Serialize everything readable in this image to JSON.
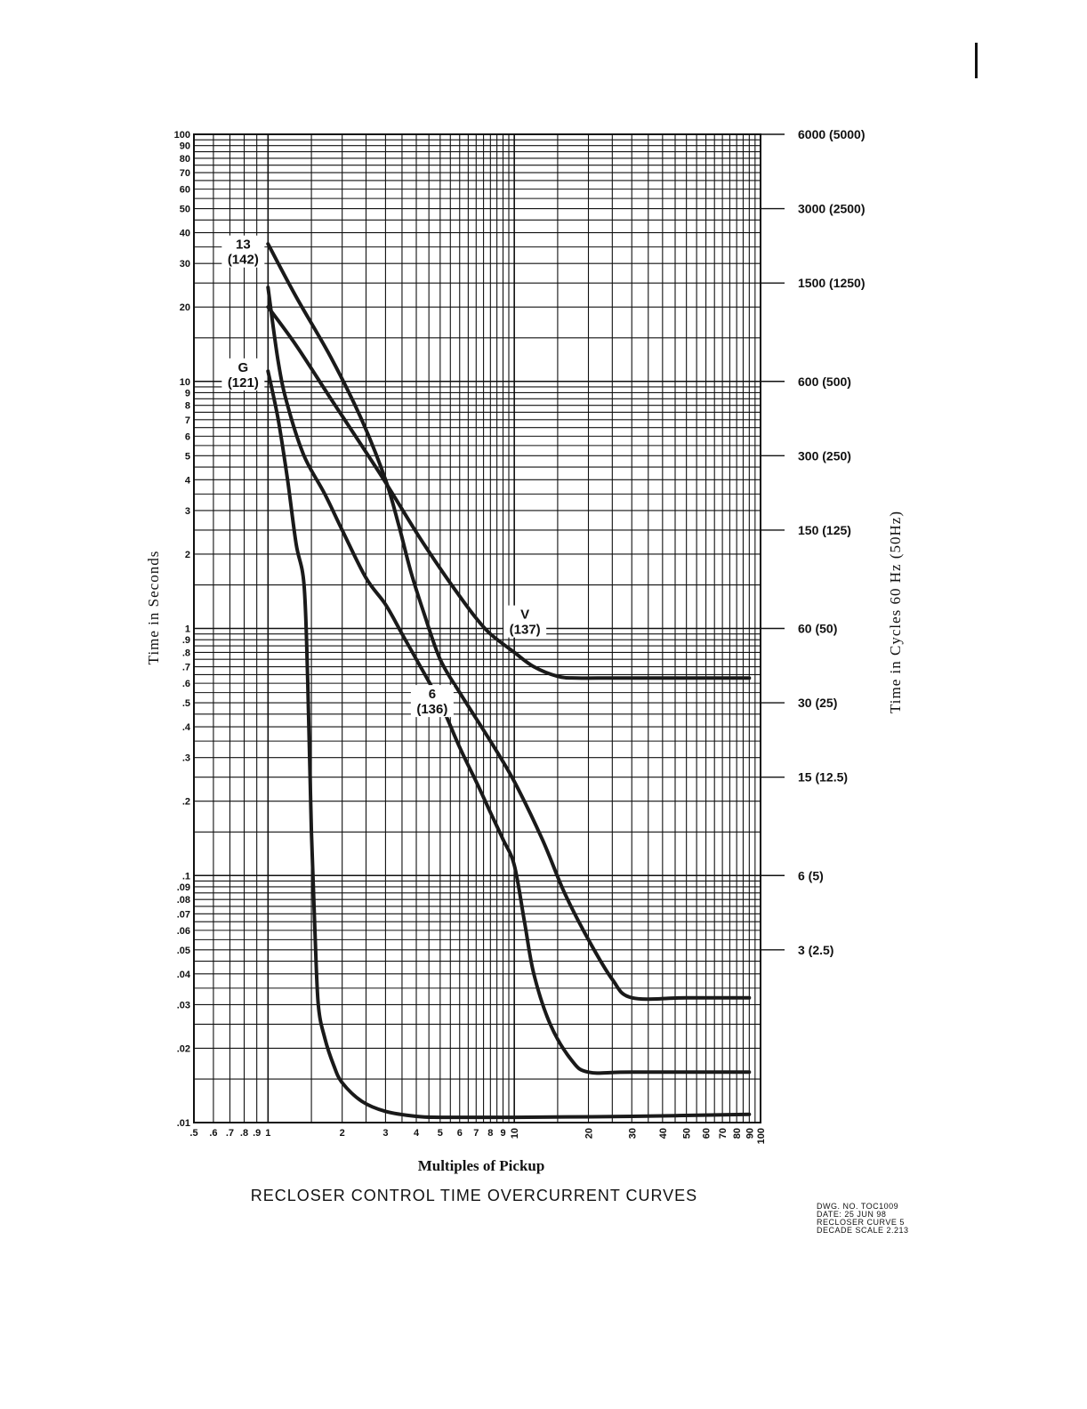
{
  "chart_data": {
    "type": "line",
    "title": "RECLOSER CONTROL TIME OVERCURRENT CURVES",
    "xlabel": "Multiples of Pickup",
    "ylabel": "Time in Seconds",
    "y2label": "Time in Cycles 60 Hz (50Hz)",
    "x_scale": "log",
    "y_scale": "log",
    "xlim": [
      0.5,
      100
    ],
    "ylim": [
      0.01,
      100
    ],
    "grid": true,
    "x_ticks": [
      {
        "v": 0.5,
        "t": ".5"
      },
      {
        "v": 0.6,
        "t": ".6"
      },
      {
        "v": 0.7,
        "t": ".7"
      },
      {
        "v": 0.8,
        "t": ".8"
      },
      {
        "v": 0.9,
        "t": ".9"
      },
      {
        "v": 1,
        "t": "1"
      },
      {
        "v": 2,
        "t": "2"
      },
      {
        "v": 3,
        "t": "3"
      },
      {
        "v": 4,
        "t": "4"
      },
      {
        "v": 5,
        "t": "5"
      },
      {
        "v": 6,
        "t": "6"
      },
      {
        "v": 7,
        "t": "7"
      },
      {
        "v": 8,
        "t": "8"
      },
      {
        "v": 9,
        "t": "9"
      },
      {
        "v": 10,
        "t": "10",
        "rot": true
      },
      {
        "v": 20,
        "t": "20",
        "rot": true
      },
      {
        "v": 30,
        "t": "30",
        "rot": true
      },
      {
        "v": 40,
        "t": "40",
        "rot": true
      },
      {
        "v": 50,
        "t": "50",
        "rot": true
      },
      {
        "v": 60,
        "t": "60",
        "rot": true
      },
      {
        "v": 70,
        "t": "70",
        "rot": true
      },
      {
        "v": 80,
        "t": "80",
        "rot": true
      },
      {
        "v": 90,
        "t": "90",
        "rot": true
      },
      {
        "v": 100,
        "t": "100",
        "rot": true
      }
    ],
    "y_ticks": [
      {
        "v": 100,
        "t": "100"
      },
      {
        "v": 90,
        "t": "90"
      },
      {
        "v": 80,
        "t": "80"
      },
      {
        "v": 70,
        "t": "70"
      },
      {
        "v": 60,
        "t": "60"
      },
      {
        "v": 50,
        "t": "50"
      },
      {
        "v": 40,
        "t": "40"
      },
      {
        "v": 30,
        "t": "30"
      },
      {
        "v": 20,
        "t": "20"
      },
      {
        "v": 10,
        "t": "10"
      },
      {
        "v": 9,
        "t": "9"
      },
      {
        "v": 8,
        "t": "8"
      },
      {
        "v": 7,
        "t": "7"
      },
      {
        "v": 6,
        "t": "6"
      },
      {
        "v": 5,
        "t": "5"
      },
      {
        "v": 4,
        "t": "4"
      },
      {
        "v": 3,
        "t": "3"
      },
      {
        "v": 2,
        "t": "2"
      },
      {
        "v": 1,
        "t": "1"
      },
      {
        "v": 0.9,
        "t": ".9"
      },
      {
        "v": 0.8,
        "t": ".8"
      },
      {
        "v": 0.7,
        "t": ".7"
      },
      {
        "v": 0.6,
        "t": ".6"
      },
      {
        "v": 0.5,
        "t": ".5"
      },
      {
        "v": 0.4,
        "t": ".4"
      },
      {
        "v": 0.3,
        "t": ".3"
      },
      {
        "v": 0.2,
        "t": ".2"
      },
      {
        "v": 0.1,
        "t": ".1"
      },
      {
        "v": 0.09,
        "t": ".09"
      },
      {
        "v": 0.08,
        "t": ".08"
      },
      {
        "v": 0.07,
        "t": ".07"
      },
      {
        "v": 0.06,
        "t": ".06"
      },
      {
        "v": 0.05,
        "t": ".05"
      },
      {
        "v": 0.04,
        "t": ".04"
      },
      {
        "v": 0.03,
        "t": ".03"
      },
      {
        "v": 0.02,
        "t": ".02"
      },
      {
        "v": 0.01,
        "t": ".01"
      }
    ],
    "y2_ticks": [
      {
        "v": 100,
        "t": "6000  (5000)"
      },
      {
        "v": 50,
        "t": "3000  (2500)"
      },
      {
        "v": 25,
        "t": "1500  (1250)"
      },
      {
        "v": 10,
        "t": "600  (500)"
      },
      {
        "v": 5,
        "t": "300  (250)"
      },
      {
        "v": 2.5,
        "t": "150  (125)"
      },
      {
        "v": 1,
        "t": "60  (50)"
      },
      {
        "v": 0.5,
        "t": "30  (25)"
      },
      {
        "v": 0.25,
        "t": "15  (12.5)"
      },
      {
        "v": 0.1,
        "t": "6  (5)"
      },
      {
        "v": 0.05,
        "t": "3  (2.5)"
      }
    ],
    "series": [
      {
        "name": "13 (142)",
        "label_line1": "13",
        "label_line2": "(142)",
        "label_x": 1,
        "label_y": 33,
        "x": [
          1.0,
          1.3,
          1.8,
          2.4,
          3.0,
          3.4,
          3.8,
          4.3,
          5.0,
          6.0,
          8.0,
          10.0,
          13.0,
          16.0,
          20.0,
          25.0,
          30.0,
          50.0,
          90.0
        ],
        "y": [
          36,
          22,
          12.5,
          7,
          4.0,
          2.6,
          1.7,
          1.15,
          0.75,
          0.55,
          0.35,
          0.24,
          0.14,
          0.085,
          0.055,
          0.038,
          0.032,
          0.032,
          0.032
        ]
      },
      {
        "name": "V (137)",
        "label_line1": "V",
        "label_line2": "(137)",
        "label_x": 10,
        "label_y": 1.05,
        "x": [
          1.0,
          1.3,
          1.8,
          2.4,
          3.0,
          4.0,
          5.0,
          6.0,
          7.0,
          8.0,
          10.0,
          12.0,
          15.0,
          18.0,
          25.0,
          40.0,
          90.0
        ],
        "y": [
          20,
          14,
          8.5,
          5.5,
          3.9,
          2.45,
          1.75,
          1.35,
          1.1,
          0.95,
          0.8,
          0.7,
          0.64,
          0.63,
          0.63,
          0.63,
          0.63
        ]
      },
      {
        "name": "6 (136)",
        "label_line1": "6",
        "label_line2": "(136)",
        "label_x": 4.2,
        "label_y": 0.5,
        "x": [
          1.0,
          1.1,
          1.2,
          1.4,
          1.7,
          2.0,
          2.5,
          3.0,
          3.5,
          4.0,
          5.0,
          6.0,
          7.0,
          8.0,
          9.0,
          10.0,
          11.0,
          12.0,
          14.0,
          17.0,
          20.0,
          30.0,
          90.0
        ],
        "y": [
          24,
          12,
          8,
          5,
          3.5,
          2.5,
          1.6,
          1.25,
          0.95,
          0.75,
          0.5,
          0.33,
          0.24,
          0.18,
          0.14,
          0.11,
          0.065,
          0.04,
          0.025,
          0.018,
          0.016,
          0.016,
          0.016
        ]
      },
      {
        "name": "G (121)",
        "label_line1": "G",
        "label_line2": "(121)",
        "label_x": 1,
        "label_y": 10.5,
        "x": [
          1.0,
          1.1,
          1.2,
          1.3,
          1.4,
          1.45,
          1.5,
          1.55,
          1.6,
          1.7,
          1.85,
          2.0,
          2.4,
          3.0,
          4.0,
          5.0,
          10.0,
          30.0,
          90.0
        ],
        "y": [
          11,
          7,
          4,
          2.2,
          1.5,
          0.6,
          0.15,
          0.06,
          0.03,
          0.022,
          0.017,
          0.0145,
          0.0122,
          0.0111,
          0.0106,
          0.0105,
          0.0105,
          0.0106,
          0.0108
        ]
      }
    ]
  },
  "drawing_info": {
    "dwg_no": "DWG. NO. TOC1009",
    "date": "DATE: 25 JUN 98",
    "curve": "RECLOSER CURVE 5",
    "scale": "DECADE SCALE 2.213"
  }
}
